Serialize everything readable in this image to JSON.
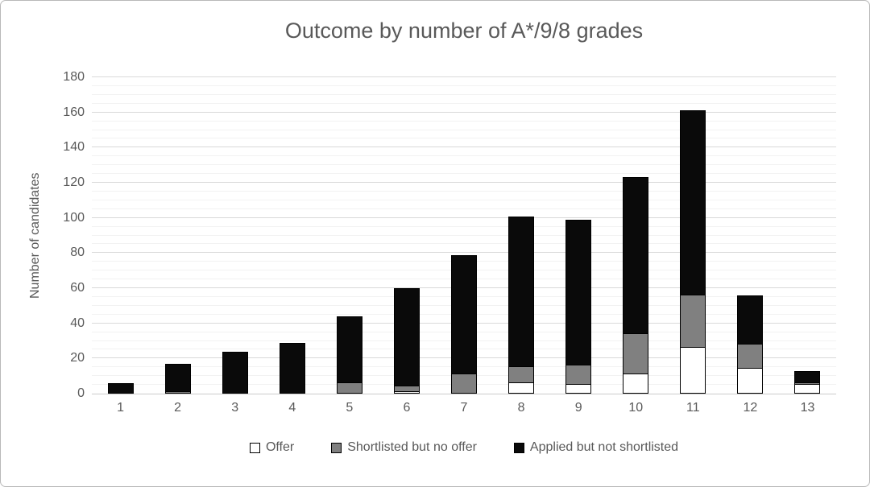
{
  "chart_data": {
    "type": "bar",
    "stacked": true,
    "title": "Outcome by number of A*/9/8 grades",
    "xlabel": "",
    "ylabel": "Number of candidates",
    "categories": [
      "1",
      "2",
      "3",
      "4",
      "5",
      "6",
      "7",
      "8",
      "9",
      "10",
      "11",
      "12",
      "13"
    ],
    "series": [
      {
        "name": "Offer",
        "color": "#ffffff",
        "values": [
          0,
          0,
          0,
          0,
          0,
          1,
          0,
          6,
          5,
          11,
          26,
          14,
          5
        ]
      },
      {
        "name": "Shortlisted but no offer",
        "color": "#808080",
        "values": [
          0,
          1,
          0,
          0,
          6,
          3,
          11,
          9,
          11,
          23,
          30,
          14,
          1
        ]
      },
      {
        "name": "Applied but not shortlisted",
        "color": "#0a0a0a",
        "values": [
          6,
          16,
          24,
          29,
          38,
          56,
          68,
          86,
          83,
          89,
          105,
          28,
          7
        ]
      }
    ],
    "totals": [
      6,
      17,
      24,
      29,
      44,
      60,
      79,
      101,
      99,
      123,
      161,
      56,
      13
    ],
    "ylim": [
      0,
      180
    ],
    "ytick_step": 20,
    "yticks": [
      "0",
      "20",
      "40",
      "60",
      "80",
      "100",
      "120",
      "140",
      "160",
      "180"
    ],
    "minor_gridline_step": 5,
    "grid": true,
    "legend_position": "bottom"
  },
  "style_colors": {
    "text": "#595959",
    "major_gridline": "#d9d9d9",
    "minor_gridline": "#f2f2f2",
    "axis_line": "#cccccc",
    "frame_border": "#b9b9b9",
    "background": "#ffffff"
  }
}
